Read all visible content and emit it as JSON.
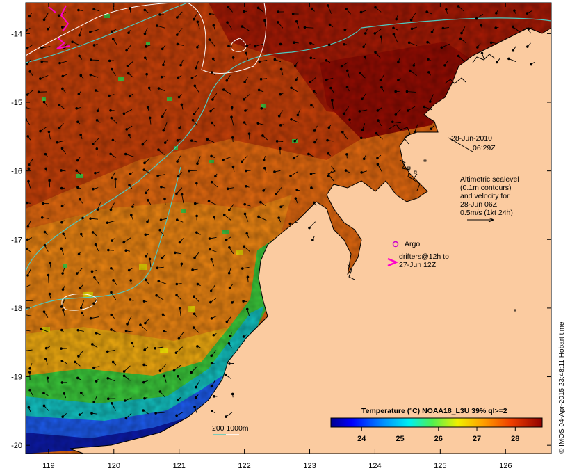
{
  "map": {
    "x_ticks": [
      "119",
      "120",
      "121",
      "122",
      "123",
      "124",
      "125",
      "126"
    ],
    "y_ticks": [
      "-14",
      "-15",
      "-16",
      "-17",
      "-18",
      "-19",
      "-20"
    ],
    "x_tick_values": [
      119,
      120,
      121,
      122,
      123,
      124,
      125,
      126
    ],
    "y_tick_values": [
      -14,
      -15,
      -16,
      -17,
      -18,
      -19,
      -20
    ],
    "lon_range": [
      118.65,
      126.7
    ],
    "lat_range": [
      -20.12,
      -13.55
    ]
  },
  "annotations": {
    "date": "28-Jun-2010",
    "time": "06:29Z",
    "altimetric_lines": [
      "Altimetric sealevel",
      "(0.1m contours)",
      "and velocity for",
      "28-Jun 06Z",
      "0.5m/s (1kt 24h)"
    ],
    "argo_label": "Argo",
    "drifter_lines": [
      "drifters@12h to",
      "27-Jun 12Z"
    ],
    "bathy_label": "200  1000m"
  },
  "colorbar": {
    "title": "Temperature (ºC) NOAA18_L3U 39% ql>=2",
    "tick_labels": [
      "24",
      "25",
      "26",
      "27",
      "28"
    ],
    "tick_values": [
      24,
      25,
      26,
      27,
      28
    ],
    "range": [
      23.2,
      28.7
    ]
  },
  "credit": "© IMOS 04-Apr-2015 23:48:11 Hobart time",
  "colors": {
    "land": "#fbcba0",
    "isobath_200": "#4fc9c0",
    "isobath_1000": "#ffffff",
    "argo": "#cc00cc",
    "drifter": "#ff00cc"
  }
}
